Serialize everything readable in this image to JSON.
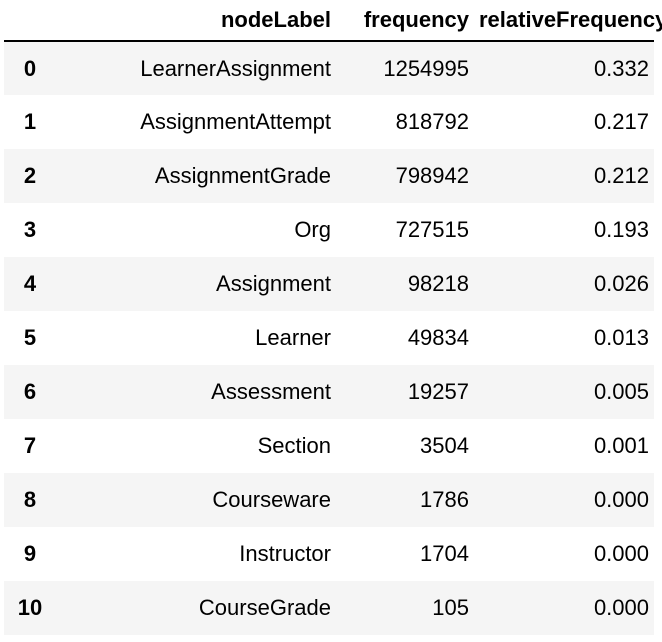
{
  "table": {
    "headers": {
      "index": "",
      "nodeLabel": "nodeLabel",
      "frequency": "frequency",
      "relativeFrequency": "relativeFrequency"
    },
    "rows": [
      {
        "index": "0",
        "nodeLabel": "LearnerAssignment",
        "frequency": "1254995",
        "relativeFrequency": "0.332"
      },
      {
        "index": "1",
        "nodeLabel": "AssignmentAttempt",
        "frequency": "818792",
        "relativeFrequency": "0.217"
      },
      {
        "index": "2",
        "nodeLabel": "AssignmentGrade",
        "frequency": "798942",
        "relativeFrequency": "0.212"
      },
      {
        "index": "3",
        "nodeLabel": "Org",
        "frequency": "727515",
        "relativeFrequency": "0.193"
      },
      {
        "index": "4",
        "nodeLabel": "Assignment",
        "frequency": "98218",
        "relativeFrequency": "0.026"
      },
      {
        "index": "5",
        "nodeLabel": "Learner",
        "frequency": "49834",
        "relativeFrequency": "0.013"
      },
      {
        "index": "6",
        "nodeLabel": "Assessment",
        "frequency": "19257",
        "relativeFrequency": "0.005"
      },
      {
        "index": "7",
        "nodeLabel": "Section",
        "frequency": "3504",
        "relativeFrequency": "0.001"
      },
      {
        "index": "8",
        "nodeLabel": "Courseware",
        "frequency": "1786",
        "relativeFrequency": "0.000"
      },
      {
        "index": "9",
        "nodeLabel": "Instructor",
        "frequency": "1704",
        "relativeFrequency": "0.000"
      },
      {
        "index": "10",
        "nodeLabel": "CourseGrade",
        "frequency": "105",
        "relativeFrequency": "0.000"
      }
    ]
  }
}
